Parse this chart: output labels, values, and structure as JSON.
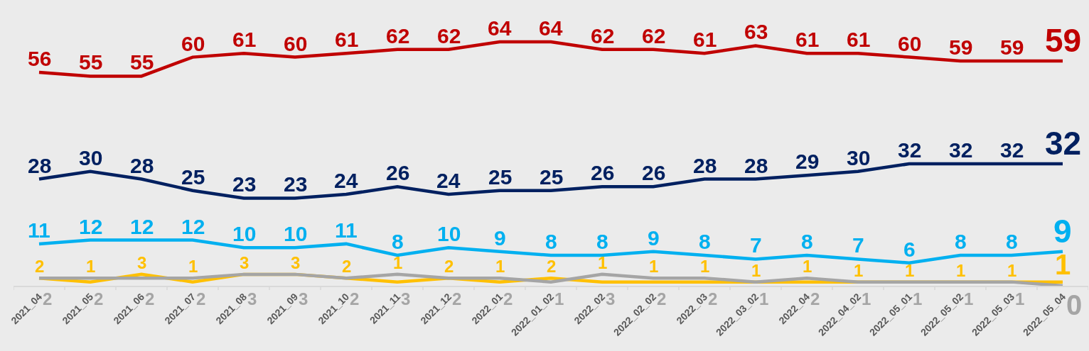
{
  "chart_data": {
    "type": "line",
    "categories": [
      "2021_04",
      "2021_05",
      "2021_06",
      "2021_07",
      "2021_08",
      "2021_09",
      "2021_10",
      "2021_11",
      "2021_12",
      "2022_01",
      "2022_01_02",
      "2022_02",
      "2022_02_02",
      "2022_03",
      "2022_03_02",
      "2022_04",
      "2022_04_02",
      "2022_05_01",
      "2022_05_02",
      "2022_05_03",
      "2022_05_04"
    ],
    "series": [
      {
        "color": "#c00000",
        "values": [
          56,
          55,
          55,
          60,
          61,
          60,
          61,
          62,
          62,
          64,
          64,
          62,
          62,
          61,
          63,
          61,
          61,
          60,
          59,
          59,
          59
        ]
      },
      {
        "color": "#002060",
        "values": [
          28,
          30,
          28,
          25,
          23,
          23,
          24,
          26,
          24,
          25,
          25,
          26,
          26,
          28,
          28,
          29,
          30,
          32,
          32,
          32,
          32
        ]
      },
      {
        "color": "#00b0f0",
        "values": [
          11,
          12,
          12,
          12,
          10,
          10,
          11,
          8,
          10,
          9,
          8,
          8,
          9,
          8,
          7,
          8,
          7,
          6,
          8,
          8,
          9
        ]
      },
      {
        "color": "#ffc000",
        "values": [
          2,
          1,
          3,
          1,
          3,
          3,
          2,
          1,
          2,
          1,
          2,
          1,
          1,
          1,
          1,
          1,
          1,
          1,
          1,
          1,
          1
        ]
      },
      {
        "color": "#a5a5a5",
        "values": [
          2,
          2,
          2,
          2,
          3,
          3,
          2,
          3,
          2,
          2,
          1,
          3,
          2,
          2,
          1,
          2,
          1,
          1,
          1,
          1,
          0
        ]
      }
    ],
    "ylim": [
      0,
      75
    ],
    "data_labels": true,
    "tick_labels": "x"
  }
}
